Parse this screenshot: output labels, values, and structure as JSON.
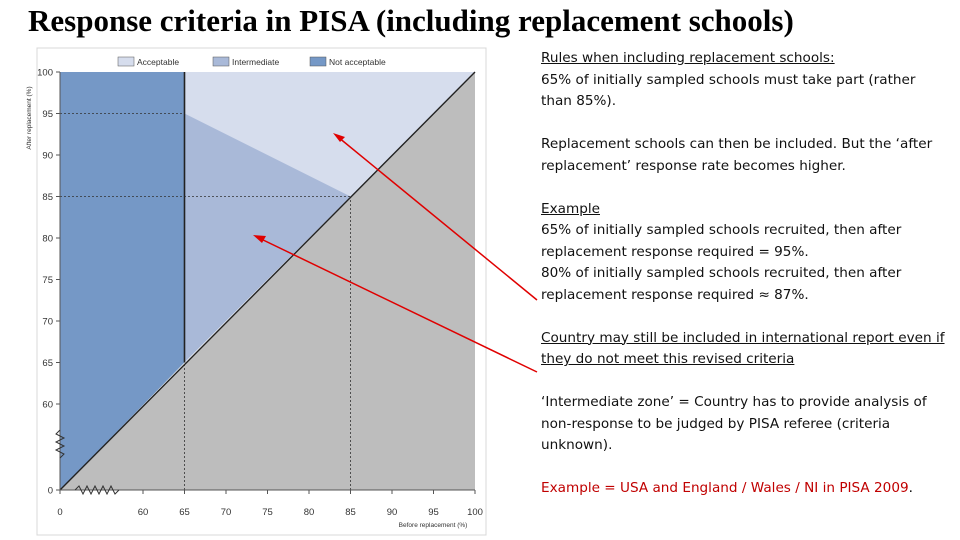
{
  "slide": {
    "title": "Response criteria in PISA (including replacement schools)"
  },
  "chart_data": {
    "type": "area",
    "legend": [
      "Acceptable",
      "Intermediate",
      "Not acceptable"
    ],
    "legend_position": "top",
    "xlabel": "Before replacement (%)",
    "ylabel": "After replacement (%)",
    "x_ticks": [
      0,
      60,
      65,
      70,
      75,
      80,
      85,
      90,
      95,
      100
    ],
    "y_ticks": [
      0,
      60,
      65,
      70,
      75,
      80,
      85,
      90,
      95,
      100
    ],
    "axis_break": true,
    "xlim": [
      0,
      100
    ],
    "ylim": [
      0,
      100
    ],
    "regions": {
      "not_acceptable": "before replacement below 65",
      "intermediate_boundary": [
        [
          65,
          95
        ],
        [
          85,
          85
        ]
      ],
      "acceptable_boundary_lines": {
        "vertical_at_x": 65,
        "diagonal": [
          [
            65,
            65
          ],
          [
            100,
            100
          ]
        ]
      }
    },
    "reference_lines": [
      {
        "from": [
          0,
          95
        ],
        "to": [
          65,
          95
        ]
      },
      {
        "from": [
          0,
          85
        ],
        "to": [
          85,
          85
        ]
      },
      {
        "from": [
          65,
          0
        ],
        "to": [
          65,
          65
        ]
      },
      {
        "from": [
          85,
          0
        ],
        "to": [
          85,
          85
        ]
      }
    ],
    "colors": {
      "acceptable": "#d6dded",
      "intermediate": "#a9b9d8",
      "not_acceptable": "#7598c6",
      "below_diagonal": "#bdbdbd",
      "arrow": "#e00000"
    }
  },
  "panel": {
    "rules_heading": "Rules when including replacement schools:",
    "rules_body": "65% of initially sampled schools must take part (rather than 85%).",
    "replacement_body": "Replacement schools can then be included. But the ‘after replacement’ response rate becomes higher.",
    "example_heading": "Example",
    "example_body_1": "65% of initially sampled schools recruited, then after replacement response required = 95%.",
    "example_body_2": "80% of initially sampled schools recruited, then after replacement response required ≈ 87%.",
    "country_heading": "Country may still be included in international report even if they do not meet this revised criteria",
    "intermediate_body": "‘Intermediate zone’ = Country has to provide analysis of non-response to be judged by PISA referee (criteria unknown).",
    "usa_example": "Example = USA and England / Wales / NI in PISA 2009",
    "usa_example_period": "."
  }
}
